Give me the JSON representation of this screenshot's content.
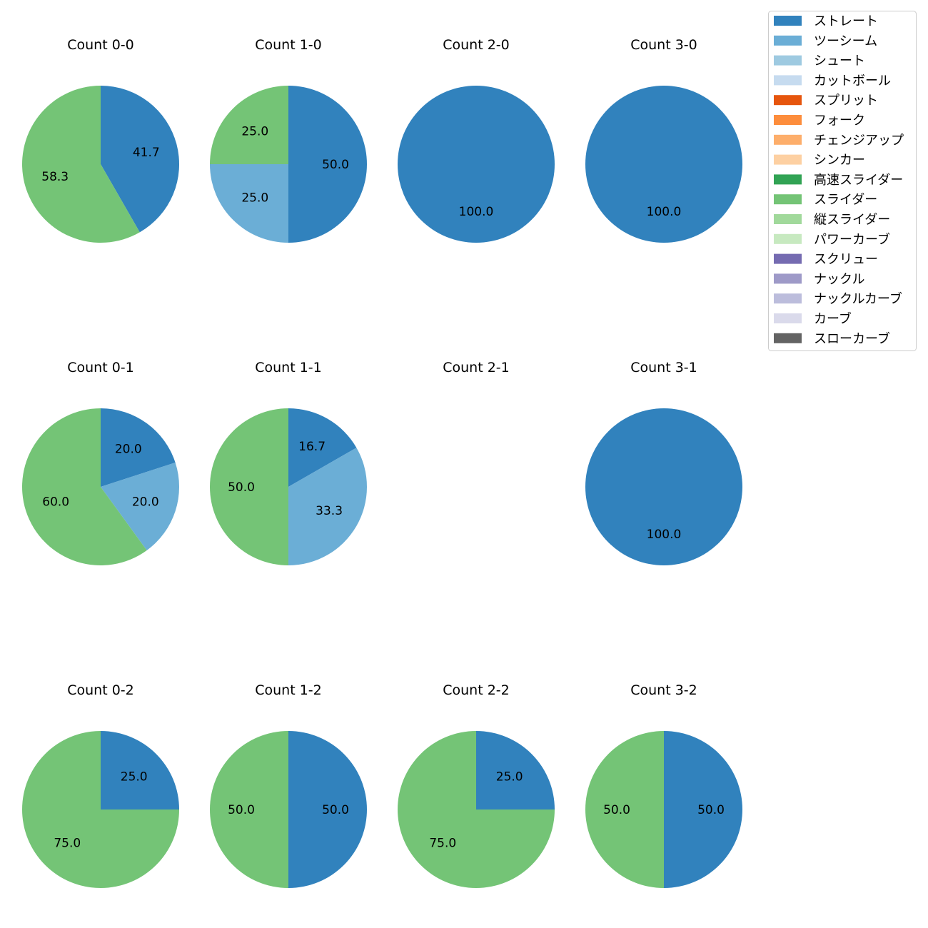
{
  "colors": {
    "ストレート": "#3182bd",
    "ツーシーム": "#6baed6",
    "シュート": "#9ecae1",
    "カットボール": "#c6dbef",
    "スプリット": "#e6550d",
    "フォーク": "#fd8d3c",
    "チェンジアップ": "#fdae6b",
    "シンカー": "#fdd0a2",
    "高速スライダー": "#31a354",
    "スライダー": "#74c476",
    "縦スライダー": "#a1d99b",
    "パワーカーブ": "#c7e9c0",
    "スクリュー": "#756bb1",
    "ナックル": "#9e9ac8",
    "ナックルカーブ": "#bcbddc",
    "カーブ": "#dadaeb",
    "スローカーブ": "#636363"
  },
  "chart_data": {
    "type": "pie",
    "legend": {
      "placement": "top-right",
      "entries": [
        "ストレート",
        "ツーシーム",
        "シュート",
        "カットボール",
        "スプリット",
        "フォーク",
        "チェンジアップ",
        "シンカー",
        "高速スライダー",
        "スライダー",
        "縦スライダー",
        "パワーカーブ",
        "スクリュー",
        "ナックル",
        "ナックルカーブ",
        "カーブ",
        "スローカーブ"
      ]
    },
    "charts": [
      {
        "title": "Count 0-0",
        "slices": [
          {
            "label": "ストレート",
            "value": 41.7,
            "text": "41.7"
          },
          {
            "label": "スライダー",
            "value": 58.3,
            "text": "58.3"
          }
        ]
      },
      {
        "title": "Count 1-0",
        "slices": [
          {
            "label": "ストレート",
            "value": 50.0,
            "text": "50.0"
          },
          {
            "label": "ツーシーム",
            "value": 25.0,
            "text": "25.0"
          },
          {
            "label": "スライダー",
            "value": 25.0,
            "text": "25.0"
          }
        ]
      },
      {
        "title": "Count 2-0",
        "slices": [
          {
            "label": "ストレート",
            "value": 100.0,
            "text": "100.0"
          }
        ]
      },
      {
        "title": "Count 3-0",
        "slices": [
          {
            "label": "ストレート",
            "value": 100.0,
            "text": "100.0"
          }
        ]
      },
      {
        "title": "Count 0-1",
        "slices": [
          {
            "label": "ストレート",
            "value": 20.0,
            "text": "20.0"
          },
          {
            "label": "ツーシーム",
            "value": 20.0,
            "text": "20.0"
          },
          {
            "label": "スライダー",
            "value": 60.0,
            "text": "60.0"
          }
        ]
      },
      {
        "title": "Count 1-1",
        "slices": [
          {
            "label": "ストレート",
            "value": 16.7,
            "text": "16.7"
          },
          {
            "label": "ツーシーム",
            "value": 33.3,
            "text": "33.3"
          },
          {
            "label": "スライダー",
            "value": 50.0,
            "text": "50.0"
          }
        ]
      },
      {
        "title": "Count 2-1",
        "slices": []
      },
      {
        "title": "Count 3-1",
        "slices": [
          {
            "label": "ストレート",
            "value": 100.0,
            "text": "100.0"
          }
        ]
      },
      {
        "title": "Count 0-2",
        "slices": [
          {
            "label": "ストレート",
            "value": 25.0,
            "text": "25.0"
          },
          {
            "label": "スライダー",
            "value": 75.0,
            "text": "75.0"
          }
        ]
      },
      {
        "title": "Count 1-2",
        "slices": [
          {
            "label": "ストレート",
            "value": 50.0,
            "text": "50.0"
          },
          {
            "label": "スライダー",
            "value": 50.0,
            "text": "50.0"
          }
        ]
      },
      {
        "title": "Count 2-2",
        "slices": [
          {
            "label": "ストレート",
            "value": 25.0,
            "text": "25.0"
          },
          {
            "label": "スライダー",
            "value": 75.0,
            "text": "75.0"
          }
        ]
      },
      {
        "title": "Count 3-2",
        "slices": [
          {
            "label": "ストレート",
            "value": 50.0,
            "text": "50.0"
          },
          {
            "label": "スライダー",
            "value": 50.0,
            "text": "50.0"
          }
        ]
      }
    ]
  }
}
